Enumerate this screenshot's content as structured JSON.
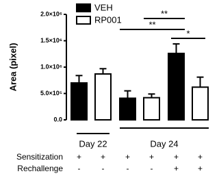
{
  "chart_data": {
    "type": "bar",
    "y_label": "Area (pixel)",
    "series": [
      {
        "name": "VEH",
        "color": "#000000",
        "values": [
          700000,
          410000,
          1260000
        ],
        "errors": [
          140000,
          140000,
          180000
        ]
      },
      {
        "name": "RP001",
        "color": "#ffffff",
        "values": [
          870000,
          420000,
          620000
        ],
        "errors": [
          100000,
          70000,
          190000
        ]
      }
    ],
    "ylim": [
      0,
      2000000
    ],
    "yticks": [
      {
        "value": 0,
        "label": "0.0"
      },
      {
        "value": 500000,
        "label": "5.0×10⁵"
      },
      {
        "value": 1000000,
        "label": "1.0×10⁶"
      },
      {
        "value": 1500000,
        "label": "1.5×10⁶"
      },
      {
        "value": 2000000,
        "label": "2.0×10⁶"
      }
    ],
    "group_labels": [
      "Day 22",
      "Day 24"
    ],
    "annotations": [
      "**",
      "**",
      "*"
    ],
    "table": [
      {
        "label": "Sensitization",
        "cells": [
          "+",
          "+",
          "+",
          "+",
          "+",
          "+"
        ]
      },
      {
        "label": "Rechallenge",
        "cells": [
          "-",
          "-",
          "-",
          "-",
          "+",
          "+"
        ]
      }
    ]
  }
}
